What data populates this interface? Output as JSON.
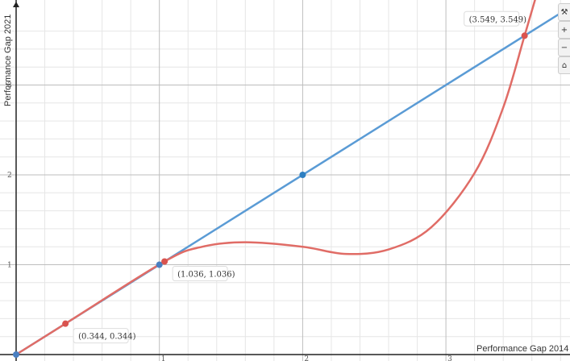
{
  "chart_data": {
    "type": "line",
    "xlabel": "Performance Gap 2014",
    "ylabel": "Performance Gap 2021",
    "xlim": [
      0,
      4.0
    ],
    "ylim": [
      0,
      3.8
    ],
    "x_ticks": [
      1,
      2,
      3
    ],
    "y_ticks": [
      1,
      2,
      3
    ],
    "grid": true,
    "series": [
      {
        "color": "#5a9bd5",
        "x": [
          0,
          4
        ],
        "y": [
          0,
          4
        ]
      },
      {
        "color": "#e06c66",
        "x": [
          0,
          0.344,
          1.036,
          1.3,
          1.6,
          2.0,
          2.3,
          2.6,
          2.9,
          3.2,
          3.4,
          3.549,
          3.65
        ],
        "y": [
          0,
          0.344,
          1.036,
          1.2,
          1.25,
          1.2,
          1.12,
          1.17,
          1.42,
          2.02,
          2.75,
          3.549,
          4.1
        ]
      }
    ],
    "points": [
      {
        "x": 0,
        "y": 0,
        "color": "#4a7fc1"
      },
      {
        "x": 0.344,
        "y": 0.344,
        "color": "#d9534f",
        "label": "(0.344, 0.344)"
      },
      {
        "x": 1.0,
        "y": 1.0,
        "color": "#4a7fc1"
      },
      {
        "x": 1.036,
        "y": 1.036,
        "color": "#d9534f",
        "label": "(1.036, 1.036)"
      },
      {
        "x": 2.0,
        "y": 2.0,
        "color": "#2e7fc1"
      },
      {
        "x": 3.549,
        "y": 3.549,
        "color": "#d9534f",
        "label": "(3.549, 3.549)"
      }
    ]
  },
  "toolbar": {
    "icons": [
      "wrench-icon",
      "plus-icon",
      "minus-icon",
      "home-icon"
    ]
  }
}
